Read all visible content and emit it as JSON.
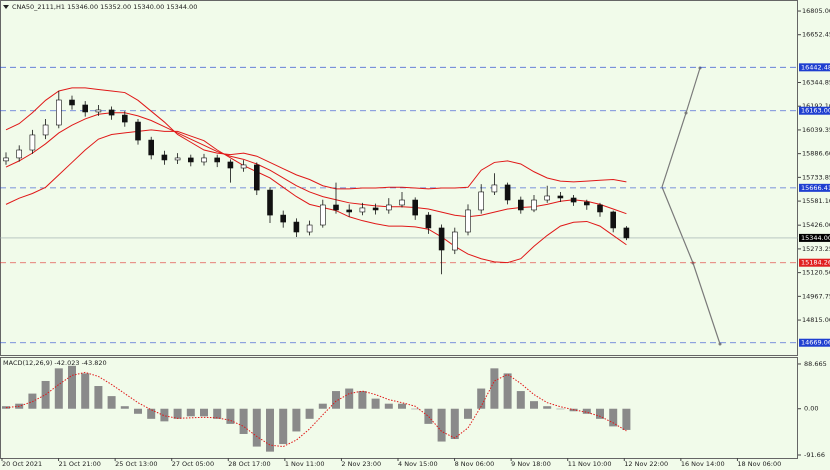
{
  "chart_data": [
    {
      "type": "candlestick",
      "title": "CNA50_2111,H1  15346.00 15352.00 15340.00 15344.00",
      "categories": [
        "20 Oct 2021",
        "21 Oct 21:00",
        "25 Oct 13:00",
        "27 Oct 05:00",
        "28 Oct 17:00",
        "1 Nov 11:00",
        "2 Nov 23:00",
        "4 Nov 15:00",
        "8 Nov 06:00",
        "9 Nov 18:00",
        "11 Nov 10:00",
        "12 Nov 22:00",
        "16 Nov 14:00",
        "18 Nov 06:00"
      ],
      "ylim": [
        14590,
        16876
      ],
      "yticks": [
        {
          "value": 16805,
          "label": "16805.00"
        },
        {
          "value": 16652.45,
          "label": "16652.45"
        },
        {
          "value": 16344.85,
          "label": "16344.85"
        },
        {
          "value": 16192.1,
          "label": "16192.10"
        },
        {
          "value": 16039.35,
          "label": "16039.35"
        },
        {
          "value": 15886.6,
          "label": "15886.60"
        },
        {
          "value": 15733.85,
          "label": "15733.85"
        },
        {
          "value": 15581.1,
          "label": "15581.10"
        },
        {
          "value": 15426,
          "label": "15426.00"
        },
        {
          "value": 15273.25,
          "label": "15273.25"
        },
        {
          "value": 15120.5,
          "label": "15120.50"
        },
        {
          "value": 14967.75,
          "label": "14967.75"
        },
        {
          "value": 14815,
          "label": "14815.00"
        }
      ],
      "levels": [
        {
          "value": 16442.48,
          "label": "16442.48",
          "color": "#1f3fd0"
        },
        {
          "value": 16163,
          "label": "16163.00",
          "color": "#1f3fd0"
        },
        {
          "value": 15666.41,
          "label": "15666.41",
          "color": "#1f3fd0"
        },
        {
          "value": 14669.06,
          "label": "14669.06",
          "color": "#1f3fd0"
        },
        {
          "value": 15184.26,
          "label": "15184.26",
          "color": "#e02020"
        }
      ],
      "last": {
        "value": 15344,
        "label": "15344.00",
        "color": "#000000"
      },
      "open": [
        15840,
        15859,
        15910,
        16007,
        16071,
        16232,
        16200,
        16155,
        16168,
        16135,
        16090,
        15974,
        15878,
        15846,
        15859,
        15833,
        15859,
        15833,
        15794,
        15814,
        15652,
        15491,
        15446,
        15382,
        15427,
        15556,
        15524,
        15511,
        15537,
        15524,
        15556,
        15588,
        15491,
        15408,
        15266,
        15382,
        15524,
        15640,
        15685,
        15588,
        15524,
        15588,
        15614,
        15601,
        15575,
        15556,
        15511,
        15408
      ],
      "high": [
        15895,
        15940,
        16040,
        16110,
        16290,
        16260,
        16225,
        16200,
        16190,
        16160,
        16110,
        15995,
        15905,
        15890,
        15880,
        15885,
        15880,
        15850,
        15845,
        15830,
        15670,
        15520,
        15470,
        15455,
        15590,
        15700,
        15560,
        15570,
        15565,
        15600,
        15640,
        15605,
        15510,
        15430,
        15410,
        15560,
        15690,
        15760,
        15700,
        15610,
        15620,
        15680,
        15640,
        15620,
        15590,
        15570,
        15520,
        15420
      ],
      "low": [
        15815,
        15835,
        15885,
        15980,
        16050,
        16170,
        16125,
        16130,
        16105,
        16060,
        15945,
        15850,
        15815,
        15820,
        15805,
        15810,
        15800,
        15700,
        15770,
        15620,
        15440,
        15410,
        15350,
        15360,
        15410,
        15500,
        15480,
        15490,
        15495,
        15500,
        15540,
        15460,
        15370,
        15110,
        15240,
        15360,
        15500,
        15620,
        15560,
        15500,
        15510,
        15570,
        15575,
        15550,
        15525,
        15480,
        15380,
        15330
      ],
      "close": [
        15859,
        15910,
        16007,
        16071,
        16232,
        16200,
        16155,
        16168,
        16135,
        16090,
        15974,
        15878,
        15846,
        15859,
        15833,
        15859,
        15833,
        15794,
        15814,
        15652,
        15491,
        15446,
        15382,
        15427,
        15556,
        15524,
        15511,
        15537,
        15524,
        15556,
        15588,
        15491,
        15408,
        15266,
        15382,
        15524,
        15640,
        15685,
        15588,
        15524,
        15588,
        15614,
        15601,
        15575,
        15556,
        15511,
        15408,
        15344
      ],
      "bands": [
        {
          "color": "#e01818",
          "values": [
            16040,
            16080,
            16150,
            16230,
            16290,
            16310,
            16310,
            16300,
            16290,
            16280,
            16230,
            16160,
            16090,
            16010,
            15960,
            15910,
            15890,
            15880,
            15890,
            15870,
            15830,
            15790,
            15750,
            15720,
            15680,
            15660,
            15660,
            15665,
            15665,
            15670,
            15670,
            15665,
            15660,
            15665,
            15665,
            15670,
            15780,
            15830,
            15840,
            15820,
            15770,
            15730,
            15710,
            15705,
            15710,
            15715,
            15720,
            15705
          ]
        },
        {
          "color": "#e01818",
          "values": [
            15800,
            15840,
            15890,
            15950,
            16020,
            16070,
            16110,
            16140,
            16150,
            16150,
            16130,
            16100,
            16060,
            16020,
            15980,
            15940,
            15900,
            15870,
            15850,
            15820,
            15780,
            15730,
            15680,
            15640,
            15610,
            15590,
            15570,
            15560,
            15550,
            15545,
            15545,
            15540,
            15530,
            15510,
            15490,
            15480,
            15490,
            15510,
            15530,
            15540,
            15545,
            15560,
            15580,
            15590,
            15580,
            15560,
            15530,
            15500
          ]
        },
        {
          "color": "#e01818",
          "values": [
            15560,
            15600,
            15630,
            15670,
            15750,
            15830,
            15910,
            15980,
            16010,
            16020,
            16030,
            16040,
            16030,
            16030,
            16000,
            15970,
            15910,
            15860,
            15810,
            15770,
            15730,
            15670,
            15610,
            15560,
            15540,
            15520,
            15480,
            15455,
            15435,
            15420,
            15420,
            15415,
            15400,
            15350,
            15290,
            15240,
            15210,
            15190,
            15185,
            15210,
            15290,
            15360,
            15420,
            15445,
            15450,
            15420,
            15360,
            15300
          ]
        }
      ]
    },
    {
      "type": "macd",
      "title": "MACD(12,26,9) -42.023 -43.820",
      "ylim": [
        -97.6,
        100.5
      ],
      "yticks": [
        88.665,
        {
          "value": 0,
          "label": "0.00"
        },
        -91.66
      ],
      "series": [
        {
          "color": "#8a8a8a",
          "values": [
            5,
            10,
            30,
            55,
            80,
            85,
            70,
            45,
            25,
            5,
            -10,
            -20,
            -25,
            -20,
            -15,
            -15,
            -20,
            -30,
            -50,
            -75,
            -85,
            -70,
            -45,
            -20,
            10,
            35,
            40,
            35,
            20,
            10,
            10,
            0,
            -30,
            -65,
            -60,
            -20,
            40,
            80,
            70,
            35,
            15,
            5,
            0,
            -5,
            -10,
            -20,
            -35,
            -42
          ]
        },
        {
          "color": "#e01818",
          "values": [
            2,
            5,
            14,
            28,
            48,
            66,
            72,
            64,
            48,
            30,
            12,
            -2,
            -14,
            -19,
            -18,
            -17,
            -18,
            -23,
            -35,
            -55,
            -72,
            -75,
            -62,
            -40,
            -12,
            15,
            30,
            35,
            28,
            18,
            12,
            5,
            -15,
            -45,
            -58,
            -38,
            5,
            55,
            68,
            50,
            28,
            12,
            4,
            -2,
            -7,
            -15,
            -28,
            -44
          ]
        }
      ]
    }
  ]
}
